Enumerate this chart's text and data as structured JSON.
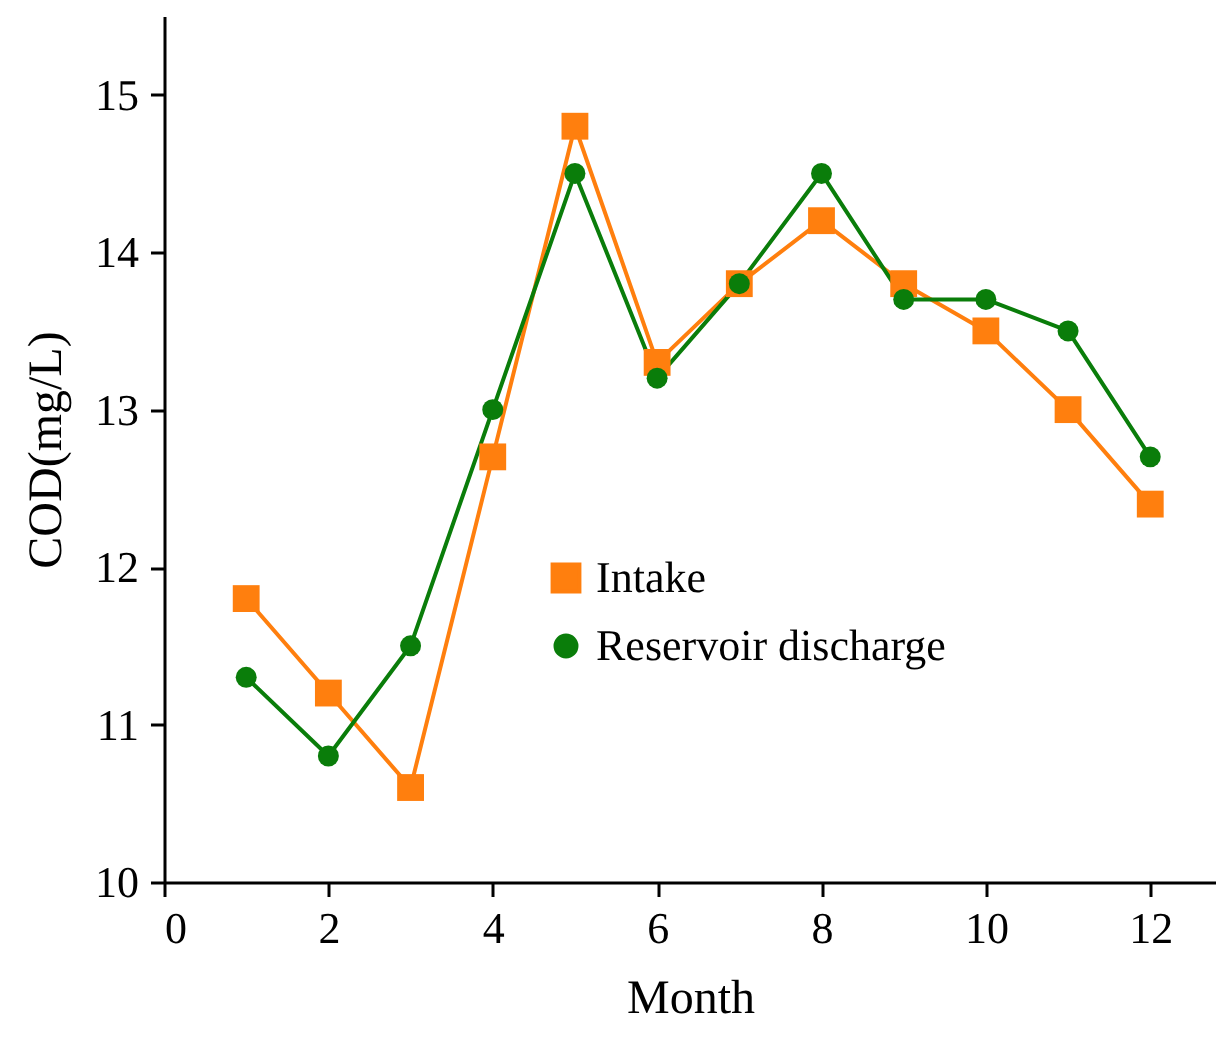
{
  "chart_data": {
    "type": "line",
    "xlabel": "Month",
    "ylabel": "COD(mg/L)",
    "x": [
      1,
      2,
      3,
      4,
      5,
      6,
      7,
      8,
      9,
      10,
      11,
      12
    ],
    "series": [
      {
        "name": "Intake",
        "color": "#ff7f0e",
        "marker": "square",
        "values": [
          11.8,
          11.2,
          10.6,
          12.7,
          14.8,
          13.3,
          13.8,
          14.2,
          13.8,
          13.5,
          13.0,
          12.4
        ]
      },
      {
        "name": "Reservoir discharge",
        "color": "#0a7d0a",
        "marker": "circle",
        "values": [
          11.3,
          10.8,
          11.5,
          13.0,
          14.5,
          13.2,
          13.8,
          14.5,
          13.7,
          13.7,
          13.5,
          12.7
        ]
      }
    ],
    "xlim": [
      0,
      12.8
    ],
    "xticks": [
      0,
      2,
      4,
      6,
      8,
      10,
      12
    ],
    "ylim": [
      10,
      15.5
    ],
    "yticks": [
      10,
      11,
      12,
      13,
      14,
      15
    ],
    "grid": false,
    "legend": "right",
    "line_style": "solid"
  }
}
